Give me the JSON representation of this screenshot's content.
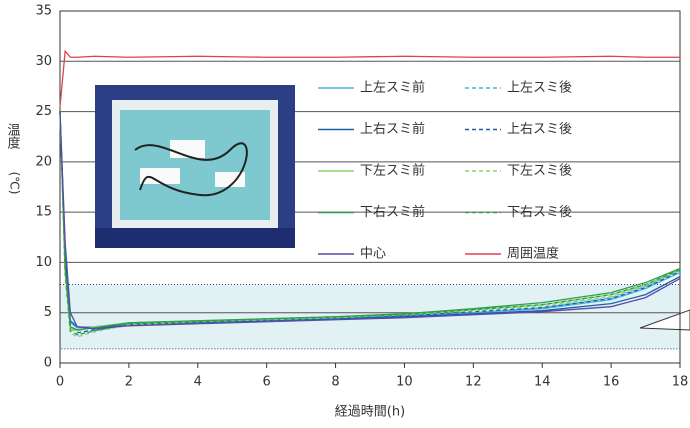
{
  "chart_data": {
    "type": "line",
    "x_label": "経過時間(h)",
    "y_label_top": "温度",
    "y_label_unit": "(℃)",
    "x": [
      0,
      0.15,
      0.3,
      0.5,
      1,
      2,
      4,
      6,
      8,
      10,
      12,
      14,
      16,
      17,
      18
    ],
    "xlim": [
      0,
      18
    ],
    "xticks": [
      0,
      2,
      4,
      6,
      8,
      10,
      12,
      14,
      16,
      18
    ],
    "ylim": [
      0,
      35
    ],
    "yticks": [
      0,
      5,
      10,
      15,
      20,
      25,
      30,
      35
    ],
    "grid": true,
    "shaded_range": [
      1.4,
      7.8
    ],
    "series": [
      {
        "name": "上左スミ前",
        "color": "#4bb3e0",
        "dash": false,
        "values": [
          25,
          10,
          4,
          3.5,
          3.6,
          3.9,
          4.1,
          4.3,
          4.5,
          4.7,
          5.0,
          5.4,
          6.3,
          7.4,
          9.0
        ]
      },
      {
        "name": "上左スミ後",
        "color": "#4bb3e0",
        "dash": true,
        "values": [
          25,
          9,
          3.5,
          2.8,
          3.2,
          3.8,
          4.1,
          4.3,
          4.5,
          4.7,
          5.0,
          5.5,
          6.5,
          7.6,
          9.2
        ]
      },
      {
        "name": "上右スミ前",
        "color": "#1f5fa8",
        "dash": false,
        "values": [
          25,
          11,
          4.2,
          3.6,
          3.5,
          3.8,
          4.0,
          4.2,
          4.4,
          4.6,
          4.9,
          5.2,
          5.9,
          6.8,
          8.6
        ]
      },
      {
        "name": "上右スミ後",
        "color": "#1f5fa8",
        "dash": true,
        "values": [
          25,
          10,
          3.8,
          3.0,
          3.3,
          3.8,
          4.0,
          4.3,
          4.5,
          4.7,
          5.1,
          5.5,
          6.4,
          7.5,
          9.1
        ]
      },
      {
        "name": "下左スミ前",
        "color": "#8dd36a",
        "dash": false,
        "values": [
          25,
          9,
          3.4,
          3.2,
          3.6,
          4.0,
          4.2,
          4.4,
          4.6,
          4.8,
          5.3,
          5.8,
          6.8,
          7.8,
          9.3
        ]
      },
      {
        "name": "下左スミ後",
        "color": "#8dd36a",
        "dash": true,
        "values": [
          25,
          8.5,
          3.0,
          2.6,
          3.1,
          3.8,
          4.1,
          4.3,
          4.5,
          4.8,
          5.2,
          5.7,
          6.6,
          7.7,
          9.2
        ]
      },
      {
        "name": "下右スミ前",
        "color": "#2e9e4f",
        "dash": false,
        "values": [
          25,
          9.5,
          3.6,
          3.3,
          3.5,
          4.0,
          4.2,
          4.4,
          4.6,
          4.9,
          5.4,
          6.0,
          7.0,
          8.0,
          9.4
        ]
      },
      {
        "name": "下右スミ後",
        "color": "#2e9e4f",
        "dash": true,
        "values": [
          25,
          9,
          3.2,
          2.8,
          3.2,
          3.9,
          4.1,
          4.4,
          4.6,
          4.8,
          5.3,
          5.8,
          6.8,
          7.8,
          9.3
        ]
      },
      {
        "name": "中心",
        "color": "#5b4aa8",
        "dash": false,
        "values": [
          25,
          12,
          5,
          3.6,
          3.4,
          3.7,
          3.9,
          4.1,
          4.3,
          4.5,
          4.8,
          5.1,
          5.6,
          6.5,
          8.4
        ]
      },
      {
        "name": "周囲温度",
        "color": "#e0404a",
        "dash": false,
        "values": [
          25.5,
          31,
          30.4,
          30.4,
          30.5,
          30.4,
          30.5,
          30.4,
          30.4,
          30.5,
          30.4,
          30.4,
          30.5,
          30.4,
          30.4
        ]
      }
    ]
  }
}
